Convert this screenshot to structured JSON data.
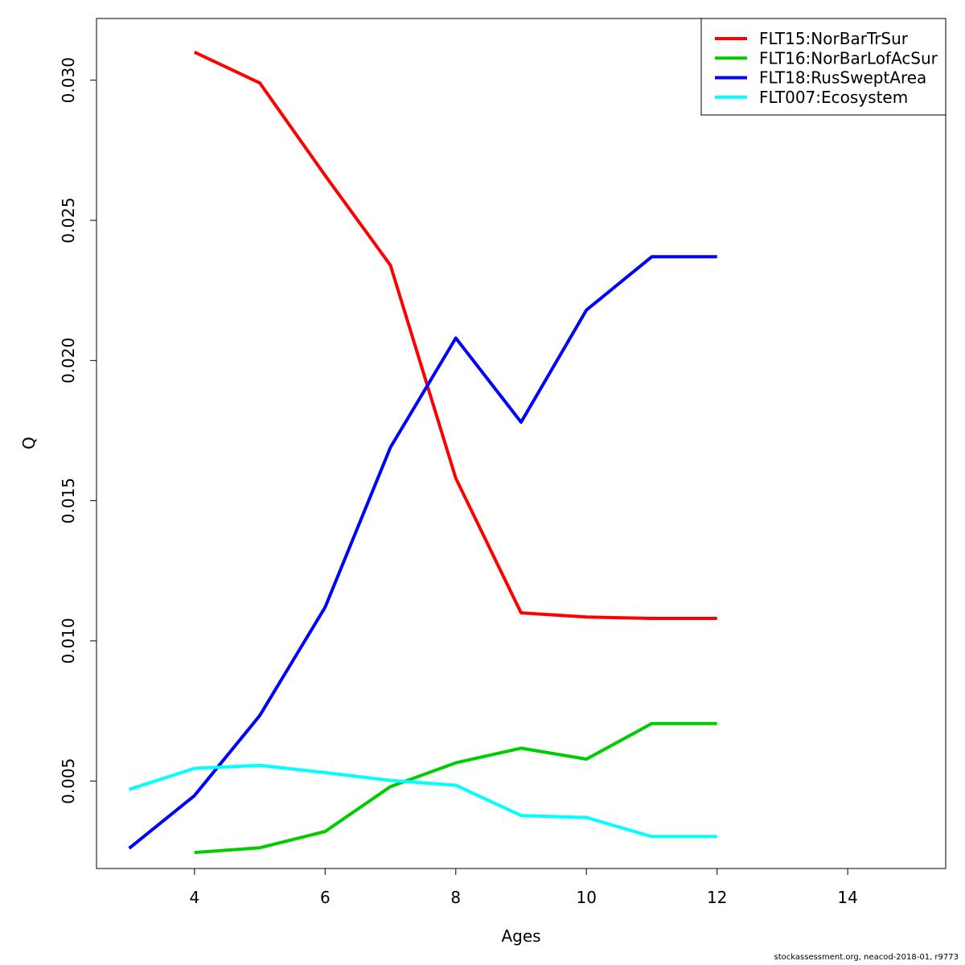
{
  "chart_data": {
    "type": "line",
    "xlabel": "Ages",
    "ylabel": "Q",
    "xlim": [
      2.5,
      15.5
    ],
    "ylim": [
      0.00188,
      0.0322
    ],
    "x_ticks": [
      4,
      6,
      8,
      10,
      12,
      14
    ],
    "y_ticks": [
      0.005,
      0.01,
      0.015,
      0.02,
      0.025,
      0.03
    ],
    "x_tick_labels": [
      "4",
      "6",
      "8",
      "10",
      "12",
      "14"
    ],
    "y_tick_labels": [
      "0.005",
      "0.010",
      "0.015",
      "0.020",
      "0.025",
      "0.030"
    ],
    "legend_position": "top-right",
    "series": [
      {
        "name": "FLT15:NorBarTrSur",
        "color": "#ff0000",
        "x": [
          4,
          5,
          6,
          7,
          8,
          9,
          10,
          11,
          12
        ],
        "y": [
          0.031,
          0.0299,
          0.0266,
          0.0234,
          0.0158,
          0.011,
          0.01085,
          0.0108,
          0.0108
        ]
      },
      {
        "name": "FLT16:NorBarLofAcSur",
        "color": "#00cd00",
        "x": [
          4,
          5,
          6,
          7,
          8,
          9,
          10,
          11,
          12
        ],
        "y": [
          0.00245,
          0.00262,
          0.0032,
          0.0048,
          0.00565,
          0.00617,
          0.00578,
          0.00705,
          0.00705
        ]
      },
      {
        "name": "FLT18:RusSweptArea",
        "color": "#0000ff",
        "x": [
          3,
          4,
          5,
          6,
          7,
          8,
          9,
          10,
          11,
          12
        ],
        "y": [
          0.0026,
          0.00448,
          0.00734,
          0.0112,
          0.0169,
          0.0208,
          0.0178,
          0.0218,
          0.0237,
          0.0237
        ]
      },
      {
        "name": "FLT007:Ecosystem",
        "color": "#00ffff",
        "x": [
          3,
          4,
          5,
          6,
          7,
          8,
          9,
          10,
          11,
          12
        ],
        "y": [
          0.0047,
          0.00545,
          0.00556,
          0.0053,
          0.00502,
          0.00485,
          0.00377,
          0.0037,
          0.00302,
          0.00302
        ]
      }
    ]
  },
  "credit": "stockassessment.org, neacod-2018-01, r9773"
}
